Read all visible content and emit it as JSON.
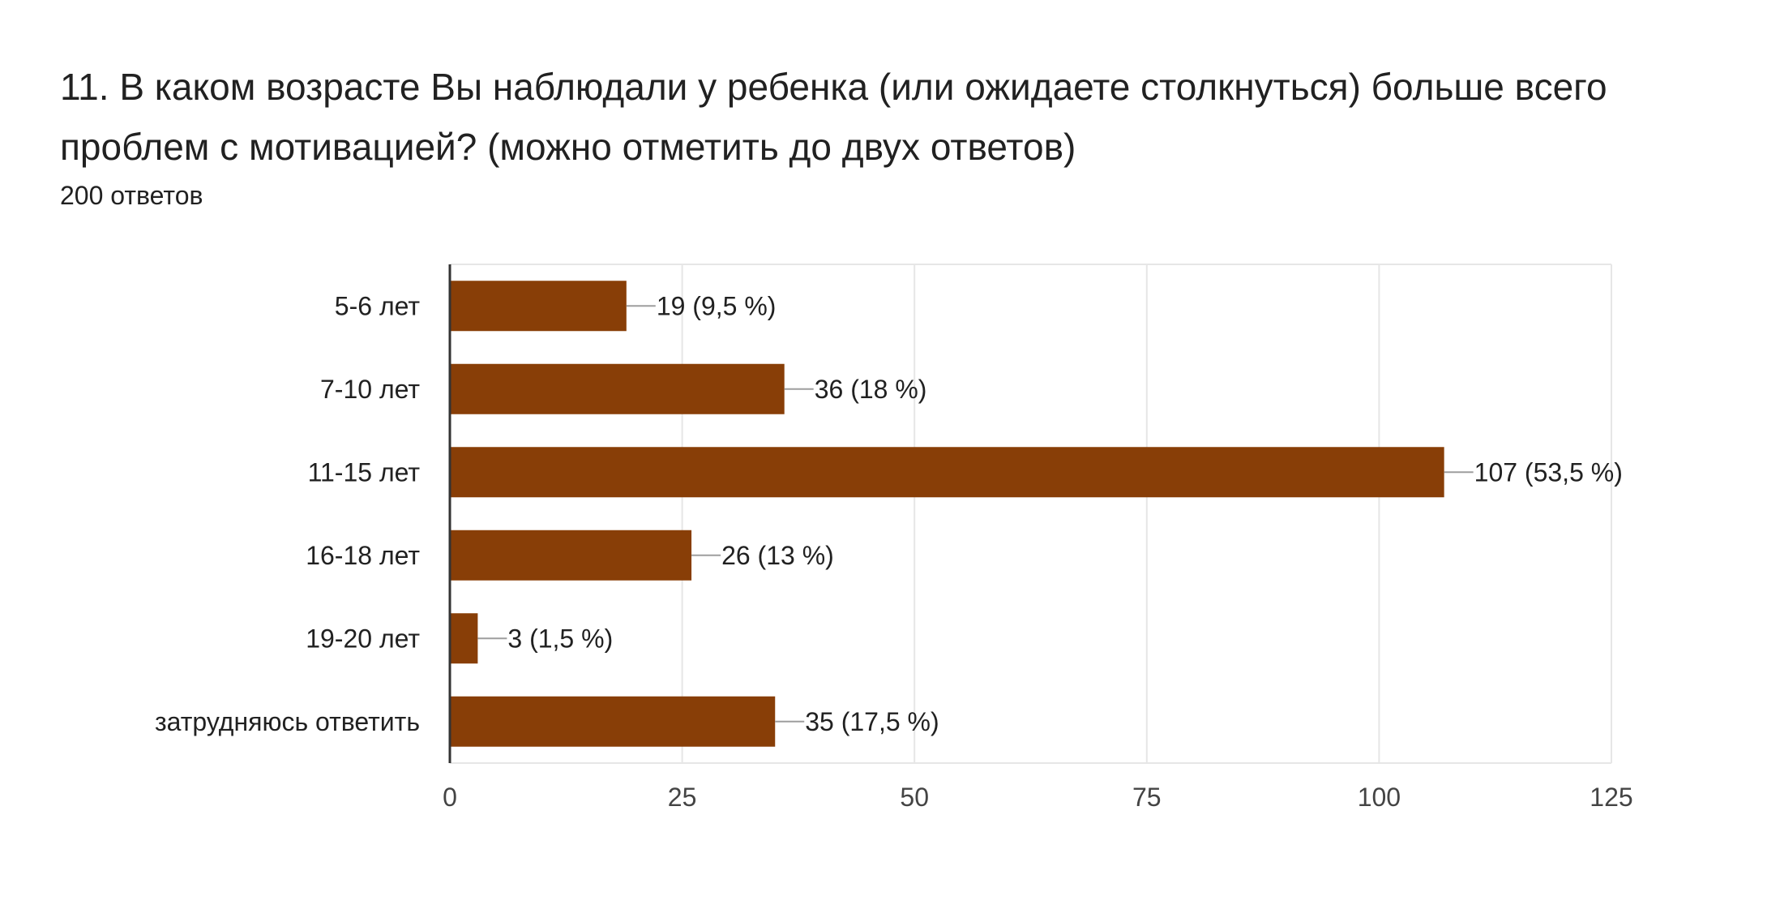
{
  "question": {
    "title": "11. В каком возрасте Вы наблюдали у ребенка (или ожидаете столкнуться) больше всего проблем с мотивацией? (можно отметить до двух ответов)",
    "response_count": "200 ответов"
  },
  "colors": {
    "bar": "#883e07",
    "grid": "#e6e6e6",
    "axis": "#333333",
    "leader": "#9e9e9e",
    "text": "#212121",
    "tick_text": "#444444"
  },
  "chart_data": {
    "type": "bar",
    "orientation": "horizontal",
    "categories": [
      "5-6 лет",
      "7-10 лет",
      "11-15 лет",
      "16-18 лет",
      "19-20 лет",
      "затрудняюсь ответить"
    ],
    "values": [
      19,
      36,
      107,
      26,
      3,
      35
    ],
    "value_labels": [
      "19 (9,5 %)",
      "36 (18 %)",
      "107 (53,5 %)",
      "26 (13 %)",
      "3 (1,5 %)",
      "35 (17,5 %)"
    ],
    "xlim": [
      0,
      125
    ],
    "xticks": [
      0,
      25,
      50,
      75,
      100,
      125
    ],
    "grid": true,
    "legend": "none",
    "title": "",
    "xlabel": "",
    "ylabel": ""
  }
}
